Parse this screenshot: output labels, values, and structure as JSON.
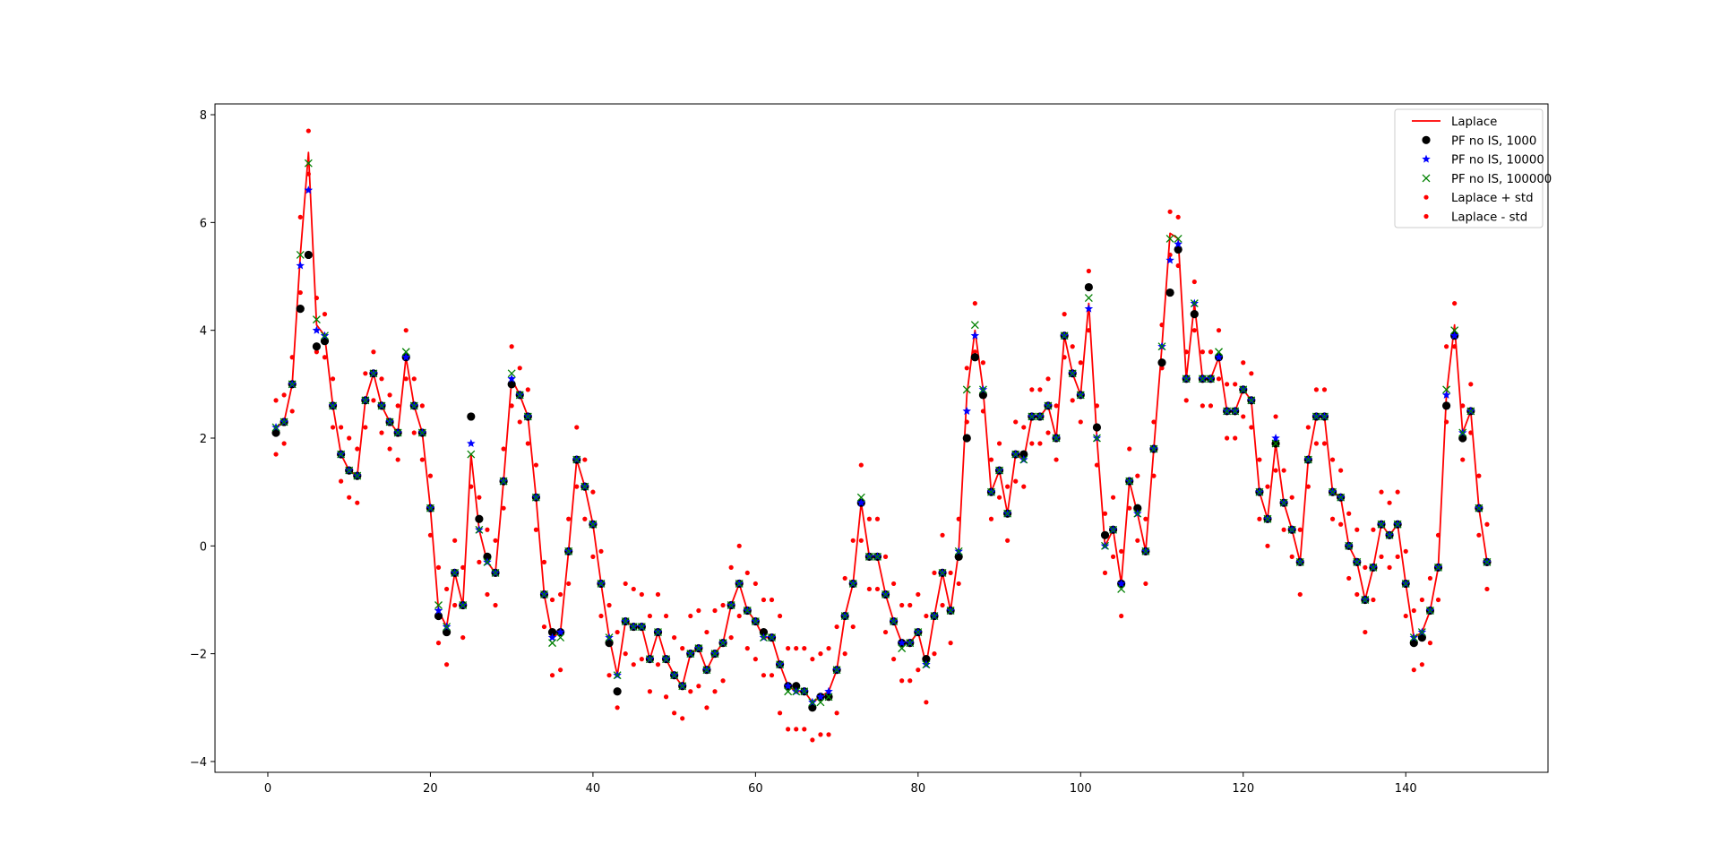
{
  "chart_data": {
    "type": "line",
    "title": "",
    "xlabel": "",
    "ylabel": "",
    "xlim": [
      -6.5,
      157.5
    ],
    "ylim": [
      -4.2,
      8.2
    ],
    "xticks": [
      0,
      20,
      40,
      60,
      80,
      100,
      120,
      140
    ],
    "yticks": [
      -4,
      -2,
      0,
      2,
      4,
      6,
      8
    ],
    "grid": false,
    "legend_position": "top-right",
    "colors": {
      "laplace": "#ff0000",
      "pf_1000": "#000000",
      "pf_10000": "#0000ff",
      "pf_100000": "#008000",
      "std": "#ff0000"
    },
    "x": [
      1,
      2,
      3,
      4,
      5,
      6,
      7,
      8,
      9,
      10,
      11,
      12,
      13,
      14,
      15,
      16,
      17,
      18,
      19,
      20,
      21,
      22,
      23,
      24,
      25,
      26,
      27,
      28,
      29,
      30,
      31,
      32,
      33,
      34,
      35,
      36,
      37,
      38,
      39,
      40,
      41,
      42,
      43,
      44,
      45,
      46,
      47,
      48,
      49,
      50,
      51,
      52,
      53,
      54,
      55,
      56,
      57,
      58,
      59,
      60,
      61,
      62,
      63,
      64,
      65,
      66,
      67,
      68,
      69,
      70,
      71,
      72,
      73,
      74,
      75,
      76,
      77,
      78,
      79,
      80,
      81,
      82,
      83,
      84,
      85,
      86,
      87,
      88,
      89,
      90,
      91,
      92,
      93,
      94,
      95,
      96,
      97,
      98,
      99,
      100,
      101,
      102,
      103,
      104,
      105,
      106,
      107,
      108,
      109,
      110,
      111,
      112,
      113,
      114,
      115,
      116,
      117,
      118,
      119,
      120,
      121,
      122,
      123,
      124,
      125,
      126,
      127,
      128,
      129,
      130,
      131,
      132,
      133,
      134,
      135,
      136,
      137,
      138,
      139,
      140,
      141,
      142,
      143,
      144,
      145,
      146,
      147,
      148,
      149,
      150
    ],
    "series": [
      {
        "name": "Laplace",
        "style": "line",
        "values": [
          2.2,
          2.3,
          3.0,
          5.4,
          7.3,
          4.1,
          3.9,
          2.6,
          1.7,
          1.4,
          1.3,
          2.7,
          3.2,
          2.6,
          2.3,
          2.1,
          3.5,
          2.6,
          2.1,
          0.7,
          -1.2,
          -1.5,
          -0.5,
          -1.1,
          1.7,
          0.3,
          -0.3,
          -0.5,
          1.2,
          3.1,
          2.8,
          2.4,
          0.9,
          -0.9,
          -1.7,
          -1.6,
          -0.1,
          1.6,
          1.1,
          0.4,
          -0.7,
          -1.7,
          -2.4,
          -1.4,
          -1.5,
          -1.5,
          -2.1,
          -1.6,
          -2.1,
          -2.4,
          -2.6,
          -2.0,
          -1.9,
          -2.3,
          -2.0,
          -1.8,
          -1.1,
          -0.7,
          -1.2,
          -1.4,
          -1.7,
          -1.7,
          -2.2,
          -2.6,
          -2.7,
          -2.7,
          -2.9,
          -2.8,
          -2.7,
          -2.3,
          -1.3,
          -0.7,
          0.8,
          -0.2,
          -0.2,
          -0.9,
          -1.4,
          -1.8,
          -1.8,
          -1.6,
          -2.2,
          -1.3,
          -0.5,
          -1.2,
          -0.1,
          2.8,
          4.0,
          2.9,
          1.0,
          1.4,
          0.6,
          1.7,
          1.6,
          2.4,
          2.4,
          2.6,
          2.0,
          3.9,
          3.2,
          2.8,
          4.5,
          2.0,
          0.0,
          0.3,
          -0.7,
          1.2,
          0.6,
          -0.1,
          1.8,
          3.7,
          5.8,
          5.7,
          3.1,
          4.5,
          3.1,
          3.1,
          3.5,
          2.5,
          2.5,
          2.9,
          2.7,
          1.0,
          0.5,
          1.9,
          0.8,
          0.3,
          -0.3,
          1.6,
          2.4,
          2.4,
          1.0,
          0.9,
          0.0,
          -0.3,
          -1.0,
          -0.4,
          0.4,
          0.2,
          0.4,
          -0.7,
          -1.7,
          -1.6,
          -1.2,
          -0.4,
          2.8,
          4.1,
          2.1,
          2.5,
          0.7,
          -0.3
        ]
      },
      {
        "name": "PF no IS, 1000",
        "style": "circle",
        "values": [
          2.1,
          2.3,
          3.0,
          4.4,
          5.4,
          3.7,
          3.8,
          2.6,
          1.7,
          1.4,
          1.3,
          2.7,
          3.2,
          2.6,
          2.3,
          2.1,
          3.5,
          2.6,
          2.1,
          0.7,
          -1.3,
          -1.6,
          -0.5,
          -1.1,
          2.4,
          0.5,
          -0.2,
          -0.5,
          1.2,
          3.0,
          2.8,
          2.4,
          0.9,
          -0.9,
          -1.6,
          -1.6,
          -0.1,
          1.6,
          1.1,
          0.4,
          -0.7,
          -1.8,
          -2.7,
          -1.4,
          -1.5,
          -1.5,
          -2.1,
          -1.6,
          -2.1,
          -2.4,
          -2.6,
          -2.0,
          -1.9,
          -2.3,
          -2.0,
          -1.8,
          -1.1,
          -0.7,
          -1.2,
          -1.4,
          -1.6,
          -1.7,
          -2.2,
          -2.6,
          -2.6,
          -2.7,
          -3.0,
          -2.8,
          -2.8,
          -2.3,
          -1.3,
          -0.7,
          0.8,
          -0.2,
          -0.2,
          -0.9,
          -1.4,
          -1.8,
          -1.8,
          -1.6,
          -2.1,
          -1.3,
          -0.5,
          -1.2,
          -0.2,
          2.0,
          3.5,
          2.8,
          1.0,
          1.4,
          0.6,
          1.7,
          1.7,
          2.4,
          2.4,
          2.6,
          2.0,
          3.9,
          3.2,
          2.8,
          4.8,
          2.2,
          0.2,
          0.3,
          -0.7,
          1.2,
          0.7,
          -0.1,
          1.8,
          3.4,
          4.7,
          5.5,
          3.1,
          4.3,
          3.1,
          3.1,
          3.5,
          2.5,
          2.5,
          2.9,
          2.7,
          1.0,
          0.5,
          1.9,
          0.8,
          0.3,
          -0.3,
          1.6,
          2.4,
          2.4,
          1.0,
          0.9,
          0.0,
          -0.3,
          -1.0,
          -0.4,
          0.4,
          0.2,
          0.4,
          -0.7,
          -1.8,
          -1.7,
          -1.2,
          -0.4,
          2.6,
          3.9,
          2.0,
          2.5,
          0.7,
          -0.3
        ]
      },
      {
        "name": "PF no IS, 10000",
        "style": "star",
        "values": [
          2.2,
          2.3,
          3.0,
          5.2,
          6.6,
          4.0,
          3.9,
          2.6,
          1.7,
          1.4,
          1.3,
          2.7,
          3.2,
          2.6,
          2.3,
          2.1,
          3.5,
          2.6,
          2.1,
          0.7,
          -1.2,
          -1.5,
          -0.5,
          -1.1,
          1.9,
          0.3,
          -0.3,
          -0.5,
          1.2,
          3.1,
          2.8,
          2.4,
          0.9,
          -0.9,
          -1.7,
          -1.6,
          -0.1,
          1.6,
          1.1,
          0.4,
          -0.7,
          -1.7,
          -2.4,
          -1.4,
          -1.5,
          -1.5,
          -2.1,
          -1.6,
          -2.1,
          -2.4,
          -2.6,
          -2.0,
          -1.9,
          -2.3,
          -2.0,
          -1.8,
          -1.1,
          -0.7,
          -1.2,
          -1.4,
          -1.7,
          -1.7,
          -2.2,
          -2.6,
          -2.7,
          -2.7,
          -2.9,
          -2.8,
          -2.7,
          -2.3,
          -1.3,
          -0.7,
          0.8,
          -0.2,
          -0.2,
          -0.9,
          -1.4,
          -1.8,
          -1.8,
          -1.6,
          -2.2,
          -1.3,
          -0.5,
          -1.2,
          -0.1,
          2.5,
          3.9,
          2.9,
          1.0,
          1.4,
          0.6,
          1.7,
          1.6,
          2.4,
          2.4,
          2.6,
          2.0,
          3.9,
          3.2,
          2.8,
          4.4,
          2.0,
          0.0,
          0.3,
          -0.7,
          1.2,
          0.6,
          -0.1,
          1.8,
          3.7,
          5.3,
          5.6,
          3.1,
          4.5,
          3.1,
          3.1,
          3.5,
          2.5,
          2.5,
          2.9,
          2.7,
          1.0,
          0.5,
          2.0,
          0.8,
          0.3,
          -0.3,
          1.6,
          2.4,
          2.4,
          1.0,
          0.9,
          0.0,
          -0.3,
          -1.0,
          -0.4,
          0.4,
          0.2,
          0.4,
          -0.7,
          -1.7,
          -1.6,
          -1.2,
          -0.4,
          2.8,
          3.9,
          2.1,
          2.5,
          0.7,
          -0.3
        ]
      },
      {
        "name": "PF no IS, 100000",
        "style": "x",
        "values": [
          2.2,
          2.3,
          3.0,
          5.4,
          7.1,
          4.2,
          3.9,
          2.6,
          1.7,
          1.4,
          1.3,
          2.7,
          3.2,
          2.6,
          2.3,
          2.1,
          3.6,
          2.6,
          2.1,
          0.7,
          -1.1,
          -1.5,
          -0.5,
          -1.1,
          1.7,
          0.3,
          -0.3,
          -0.5,
          1.2,
          3.2,
          2.8,
          2.4,
          0.9,
          -0.9,
          -1.8,
          -1.7,
          -0.1,
          1.6,
          1.1,
          0.4,
          -0.7,
          -1.7,
          -2.4,
          -1.4,
          -1.5,
          -1.5,
          -2.1,
          -1.6,
          -2.1,
          -2.4,
          -2.6,
          -2.0,
          -1.9,
          -2.3,
          -2.0,
          -1.8,
          -1.1,
          -0.7,
          -1.2,
          -1.4,
          -1.7,
          -1.7,
          -2.2,
          -2.7,
          -2.7,
          -2.7,
          -2.9,
          -2.9,
          -2.8,
          -2.3,
          -1.3,
          -0.7,
          0.9,
          -0.2,
          -0.2,
          -0.9,
          -1.4,
          -1.9,
          -1.8,
          -1.6,
          -2.2,
          -1.3,
          -0.5,
          -1.2,
          -0.1,
          2.9,
          4.1,
          2.9,
          1.0,
          1.4,
          0.6,
          1.7,
          1.6,
          2.4,
          2.4,
          2.6,
          2.0,
          3.9,
          3.2,
          2.8,
          4.6,
          2.0,
          0.0,
          0.3,
          -0.8,
          1.2,
          0.6,
          -0.1,
          1.8,
          3.7,
          5.7,
          5.7,
          3.1,
          4.5,
          3.1,
          3.1,
          3.6,
          2.5,
          2.5,
          2.9,
          2.7,
          1.0,
          0.5,
          1.9,
          0.8,
          0.3,
          -0.3,
          1.6,
          2.4,
          2.4,
          1.0,
          0.9,
          0.0,
          -0.3,
          -1.0,
          -0.4,
          0.4,
          0.2,
          0.4,
          -0.7,
          -1.7,
          -1.6,
          -1.2,
          -0.4,
          2.9,
          4.0,
          2.1,
          2.5,
          0.7,
          -0.3
        ]
      },
      {
        "name": "Laplace + std",
        "style": "dot",
        "values": [
          2.7,
          2.8,
          3.5,
          6.1,
          7.7,
          4.6,
          4.3,
          3.1,
          2.2,
          2.0,
          1.8,
          3.2,
          3.6,
          3.1,
          2.8,
          2.6,
          4.0,
          3.1,
          2.6,
          1.3,
          -0.4,
          -0.8,
          0.1,
          -0.4,
          2.4,
          0.9,
          0.3,
          0.1,
          1.8,
          3.7,
          3.3,
          2.9,
          1.5,
          -0.3,
          -1.0,
          -0.9,
          0.5,
          2.2,
          1.6,
          1.0,
          -0.1,
          -1.1,
          -1.6,
          -0.7,
          -0.8,
          -0.9,
          -1.3,
          -0.9,
          -1.3,
          -1.7,
          -1.9,
          -1.3,
          -1.2,
          -1.6,
          -1.2,
          -1.1,
          -0.4,
          0.0,
          -0.5,
          -0.7,
          -1.0,
          -1.0,
          -1.3,
          -1.9,
          -1.9,
          -1.9,
          -2.1,
          -2.0,
          -1.9,
          -1.5,
          -0.6,
          0.1,
          1.5,
          0.5,
          0.5,
          -0.2,
          -0.7,
          -1.1,
          -1.1,
          -0.9,
          -1.3,
          -0.5,
          0.2,
          -0.5,
          0.5,
          3.3,
          4.5,
          3.4,
          1.6,
          1.9,
          1.1,
          2.3,
          2.2,
          2.9,
          2.9,
          3.1,
          2.6,
          4.3,
          3.7,
          3.4,
          5.1,
          2.6,
          0.6,
          0.9,
          -0.1,
          1.8,
          1.3,
          0.5,
          2.3,
          4.1,
          6.2,
          6.1,
          3.6,
          4.9,
          3.6,
          3.6,
          4.0,
          3.0,
          3.0,
          3.4,
          3.2,
          1.6,
          1.1,
          2.4,
          1.4,
          0.9,
          0.3,
          2.2,
          2.9,
          2.9,
          1.6,
          1.4,
          0.6,
          0.3,
          -0.4,
          0.3,
          1.0,
          0.8,
          1.0,
          -0.1,
          -1.2,
          -1.0,
          -0.6,
          0.2,
          3.7,
          4.5,
          2.6,
          3.0,
          1.3,
          0.4
        ]
      },
      {
        "name": "Laplace - std",
        "style": "dot",
        "values": [
          1.7,
          1.9,
          2.5,
          4.7,
          6.9,
          3.6,
          3.5,
          2.2,
          1.2,
          0.9,
          0.8,
          2.2,
          2.7,
          2.1,
          1.8,
          1.6,
          3.1,
          2.1,
          1.6,
          0.2,
          -1.8,
          -2.2,
          -1.1,
          -1.7,
          1.1,
          -0.3,
          -0.9,
          -1.1,
          0.7,
          2.6,
          2.3,
          1.9,
          0.3,
          -1.5,
          -2.4,
          -2.3,
          -0.7,
          1.1,
          0.5,
          -0.2,
          -1.3,
          -2.4,
          -3.0,
          -2.0,
          -2.2,
          -2.1,
          -2.7,
          -2.2,
          -2.8,
          -3.1,
          -3.2,
          -2.7,
          -2.6,
          -3.0,
          -2.7,
          -2.5,
          -1.7,
          -1.3,
          -1.9,
          -2.1,
          -2.4,
          -2.4,
          -3.1,
          -3.4,
          -3.4,
          -3.4,
          -3.6,
          -3.5,
          -3.5,
          -3.1,
          -2.0,
          -1.5,
          0.1,
          -0.8,
          -0.8,
          -1.6,
          -2.1,
          -2.5,
          -2.5,
          -2.3,
          -2.9,
          -2.0,
          -1.1,
          -1.8,
          -0.7,
          2.3,
          3.6,
          2.5,
          0.5,
          0.9,
          0.1,
          1.2,
          1.1,
          1.9,
          1.9,
          2.1,
          1.6,
          3.5,
          2.7,
          2.3,
          4.0,
          1.5,
          -0.5,
          -0.2,
          -1.3,
          0.7,
          0.1,
          -0.7,
          1.3,
          3.3,
          5.4,
          5.2,
          2.7,
          4.0,
          2.6,
          2.6,
          3.1,
          2.0,
          2.0,
          2.4,
          2.2,
          0.5,
          0.0,
          1.4,
          0.3,
          -0.2,
          -0.9,
          1.1,
          1.9,
          1.9,
          0.5,
          0.4,
          -0.6,
          -0.9,
          -1.6,
          -1.0,
          -0.2,
          -0.4,
          -0.2,
          -1.3,
          -2.3,
          -2.2,
          -1.8,
          -1.0,
          2.3,
          3.7,
          1.6,
          2.1,
          0.2,
          -0.8
        ]
      }
    ]
  }
}
